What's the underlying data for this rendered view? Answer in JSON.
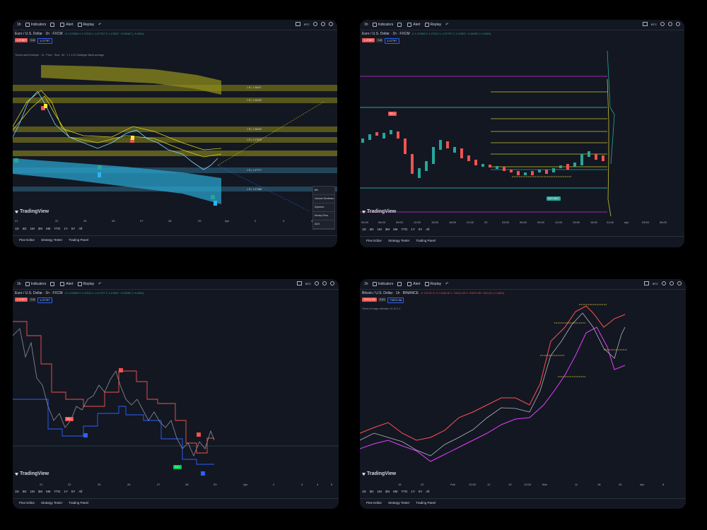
{
  "toolbar": {
    "timeframe": "1h",
    "indicators": "Indicators",
    "alert": "Alert",
    "replay": "Replay",
    "symbol_tag": "BTC"
  },
  "panels": [
    {
      "symbol": "Euro / U.S. Dollar · 1h · FXCM",
      "ohlc": "O 1.07883 H 1.07912 L 1.07797 C 1.07807 −0.00087 (−0.08%)",
      "price_red": "1.07807",
      "price_gray": "0.8",
      "price_blue": "1.07797",
      "indicator": "Trends and Envelope · 14 · Price · Sma · 80 · 1 1 1.5 2 Bollinger Band average",
      "levels": [
        "1 R | 1.08447",
        "1 R | 1.08182",
        "1 R | 1.08009",
        "1 R | 1.07839",
        "1 R | 1.07777",
        "1 R | 1.07388"
      ],
      "labels_bottom": [
        "1.07777",
        "1.07388"
      ],
      "legend": [
        "Bill",
        "Volume Sentimen",
        "Syseeco",
        "Money Flow",
        "ADX"
      ],
      "ticks": [
        "21",
        "22",
        "25",
        "26",
        "27",
        "28",
        "29",
        "Apr",
        "2",
        "3",
        "4"
      ],
      "scale": "FRI"
    },
    {
      "symbol": "Euro / U.S. Dollar · 1h · FXCM",
      "ohlc": "O 1.07883 H 1.07912 L 1.07797 C 1.07807 −0.00087 (−0.08%)",
      "price_red": "1.07807",
      "price_gray": "0.8",
      "price_blue": "1.07797",
      "ticks": [
        "03:00",
        "06:00",
        "09:00",
        "12:00",
        "15:00",
        "18:00",
        "21:00",
        "29",
        "03:00",
        "06:00",
        "09:00",
        "12:00",
        "15:00",
        "18:00",
        "21:00",
        "Apr",
        "03:00",
        "06:00"
      ],
      "sell": "SELL",
      "buy": "BUY BUY"
    },
    {
      "symbol": "Euro / U.S. Dollar · 1h · FXCM",
      "ohlc": "O 1.07883 H 1.07912 L 1.07797 C 1.07807 −0.00087 (−0.08%)",
      "price_red": "1.07807",
      "price_gray": "0.8",
      "price_blue": "1.07797",
      "ticks": [
        "21",
        "22",
        "25",
        "26",
        "27",
        "28",
        "29",
        "Apr",
        "2",
        "3",
        "4",
        "5"
      ],
      "sell": "SELL",
      "buy": "BUY"
    },
    {
      "symbol": "Bitcoin / U.S. Dollar · 1h · BINANCE",
      "ohlc": "O 71175.71 H 71180.67 L 70910.00 C 70974.95 −201.00 (−0.28%)",
      "price_red": "70974.95",
      "price_gray": "0.01",
      "price_blue": "70974.96",
      "indicator": "Trend of magic direction  14 10 2 1",
      "ticks": [
        "15",
        "22",
        "Feb",
        "12:00",
        "12",
        "19",
        "12:00",
        "Mar",
        "11",
        "18",
        "25",
        "Apr",
        "8"
      ]
    }
  ],
  "ranges": [
    "1D",
    "5D",
    "1M",
    "3M",
    "6M",
    "YTD",
    "1Y",
    "5Y",
    "All"
  ],
  "bottom_tabs": [
    "Pine Editor",
    "Strategy Tester",
    "Trading Panel"
  ],
  "logo": "TradingView",
  "colors": {
    "up": "#26a69a",
    "down": "#ef5350",
    "bg": "#131722"
  }
}
